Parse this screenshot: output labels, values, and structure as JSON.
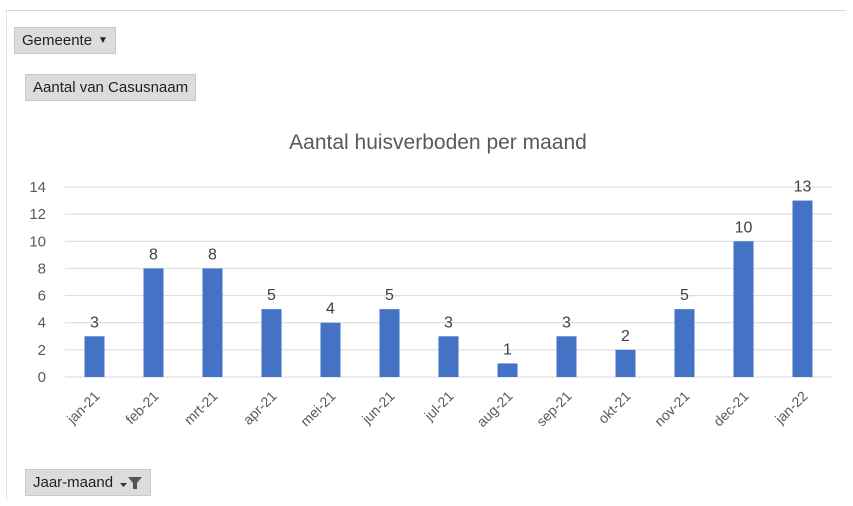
{
  "filters": {
    "gemeente_label": "Gemeente",
    "value_field_label": "Aantal van Casusnaam",
    "axis_field_label": "Jaar-maand"
  },
  "colors": {
    "bar": "#4472c4",
    "grid": "#d9d9d9"
  },
  "chart_data": {
    "type": "bar",
    "title": "Aantal huisverboden  per maand",
    "xlabel": "",
    "ylabel": "",
    "categories": [
      "jan-21",
      "feb-21",
      "mrt-21",
      "apr-21",
      "mei-21",
      "jun-21",
      "jul-21",
      "aug-21",
      "sep-21",
      "okt-21",
      "nov-21",
      "dec-21",
      "jan-22"
    ],
    "values": [
      3,
      8,
      8,
      5,
      4,
      5,
      3,
      1,
      3,
      2,
      5,
      10,
      13
    ],
    "ylim": [
      0,
      14
    ],
    "yticks": [
      0,
      2,
      4,
      6,
      8,
      10,
      12,
      14
    ],
    "grid": true,
    "data_labels": true,
    "legend": "none"
  }
}
